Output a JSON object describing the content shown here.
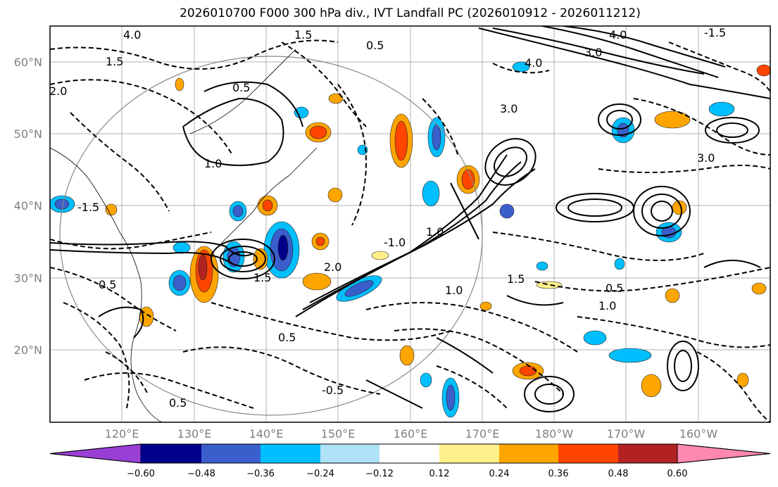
{
  "title": "2026010700 F000 300 hPa div., IVT Landfall PC (2026010912 - 2026011212)",
  "axes": {
    "lat_labels": [
      "20°N",
      "30°N",
      "40°N",
      "50°N",
      "60°N"
    ],
    "lon_labels": [
      "120°E",
      "130°E",
      "140°E",
      "150°E",
      "160°E",
      "170°E",
      "180°W",
      "170°W",
      "160°W"
    ]
  },
  "contour_labels": [
    "0.5",
    "1.0",
    "1.5",
    "2.0",
    "3.0",
    "4.0",
    "-0.5",
    "-1.0",
    "-1.5"
  ],
  "colorbar": {
    "tick_labels": [
      "−0.60",
      "−0.48",
      "−0.36",
      "−0.24",
      "−0.12",
      "0.12",
      "0.24",
      "0.36",
      "0.48",
      "0.60"
    ],
    "colors": [
      "#9a3fd6",
      "#00008b",
      "#3a5fcd",
      "#00bfff",
      "#ade2f7",
      "#ffffff",
      "#fff08c",
      "#ffa500",
      "#ff4500",
      "#b22222",
      "#ff88b0"
    ]
  },
  "field_colors": {
    "pos_light": "#fff08c",
    "pos_mid": "#ffa500",
    "pos_high": "#ff4500",
    "pos_max": "#b22222",
    "neg_light": "#ade2f7",
    "neg_mid": "#00bfff",
    "neg_high": "#3a5fcd",
    "neg_max": "#00008b"
  }
}
